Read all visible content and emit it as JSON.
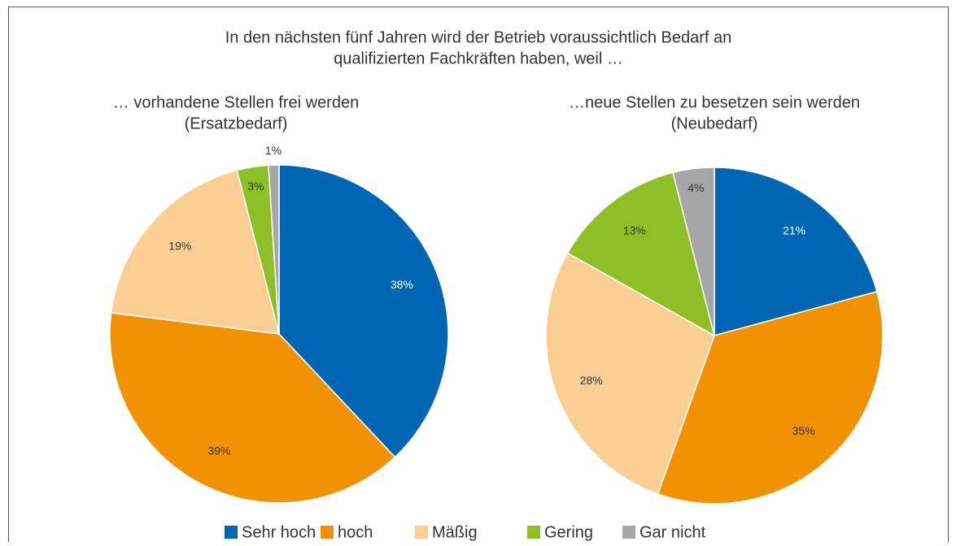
{
  "title": [
    "In den nächsten fünf Jahren wird der Betrieb voraussichtlich Bedarf an",
    "qualifizierten Fachkräften haben, weil …"
  ],
  "legend": {
    "categories": [
      "Sehr hoch",
      "hoch",
      "Mäßig",
      "Gering",
      "Gar nicht"
    ],
    "colors": [
      "#0066b3",
      "#f39200",
      "#fbcf93",
      "#8fbf26",
      "#a6a6a6"
    ]
  },
  "chart_data": [
    {
      "type": "pie",
      "title": [
        "… vorhandene Stellen frei werden",
        "(Ersatzbedarf)"
      ],
      "values": [
        38,
        39,
        19,
        3,
        1
      ],
      "value_labels": [
        "38%",
        "39%",
        "19%",
        "3%",
        "1%"
      ]
    },
    {
      "type": "pie",
      "title": [
        "…neue Stellen zu besetzen sein werden",
        "(Neubedarf)"
      ],
      "values": [
        21,
        35,
        28,
        13,
        4
      ],
      "value_labels": [
        "21%",
        "35%",
        "28%",
        "13%",
        "4%"
      ]
    }
  ]
}
